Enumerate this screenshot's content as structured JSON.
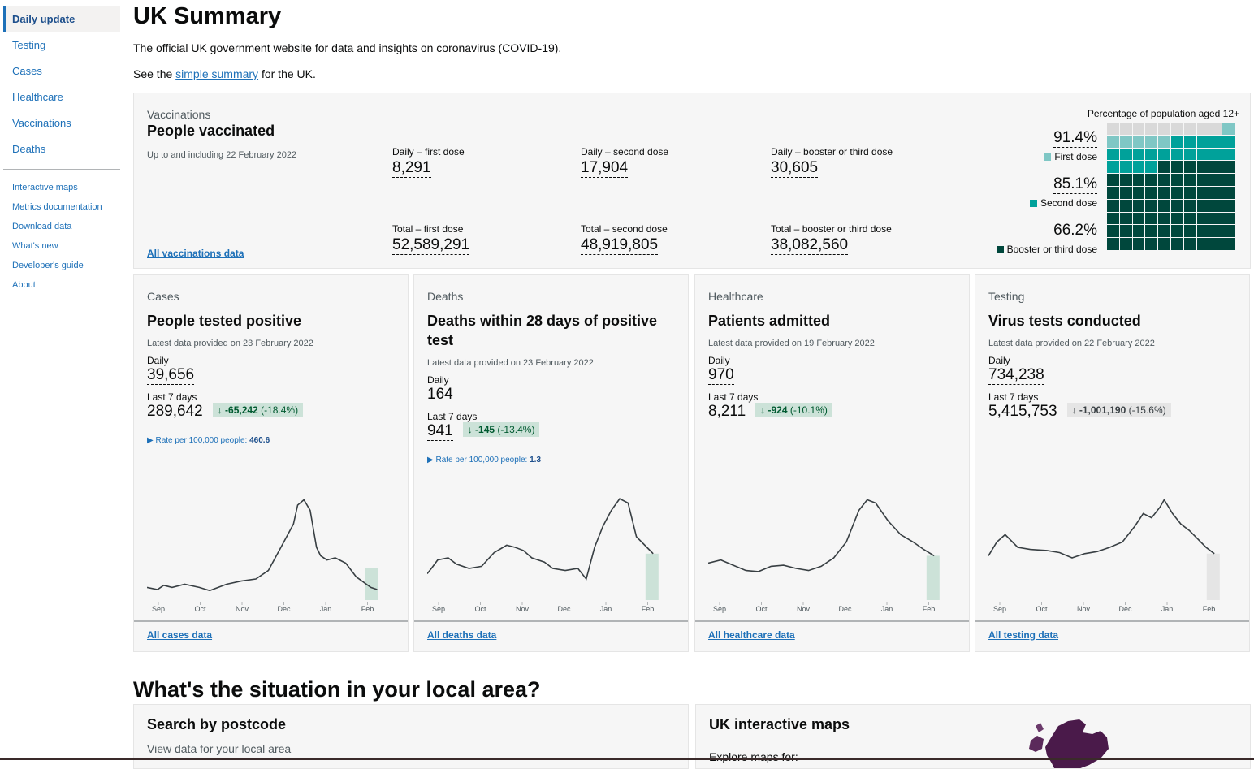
{
  "sidebar": {
    "items": [
      "Daily update",
      "Testing",
      "Cases",
      "Healthcare",
      "Vaccinations",
      "Deaths"
    ],
    "links": [
      "Interactive maps",
      "Metrics documentation",
      "Download data",
      "What's new",
      "Developer's guide",
      "About"
    ]
  },
  "header": {
    "title": "UK Summary",
    "intro": "The official UK government website for data and insights on coronavirus (COVID-19).",
    "see_prefix": "See the",
    "see_link": "simple summary",
    "see_suffix": "for the UK."
  },
  "vaccinations": {
    "category": "Vaccinations",
    "heading": "People vaccinated",
    "upto": "Up to and including 22 February 2022",
    "all_link": "All vaccinations data",
    "metrics": [
      {
        "label": "Daily – first dose",
        "value": "8,291"
      },
      {
        "label": "Daily – second dose",
        "value": "17,904"
      },
      {
        "label": "Daily – booster or third dose",
        "value": "30,605"
      },
      {
        "label": "Total – first dose",
        "value": "52,589,291"
      },
      {
        "label": "Total – second dose",
        "value": "48,919,805"
      },
      {
        "label": "Total – booster or third dose",
        "value": "38,082,560"
      }
    ],
    "waffle": {
      "title": "Percentage of population aged 12+",
      "first_pct": "91.4%",
      "first_label": "First dose",
      "second_pct": "85.1%",
      "second_label": "Second dose",
      "booster_pct": "66.2%",
      "booster_label": "Booster or third dose",
      "first_value": 91.4,
      "second_value": 85.1,
      "booster_value": 66.2,
      "colors": {
        "first": "#7fc7c5",
        "second": "#00a19a",
        "booster": "#00473c",
        "empty": "#d9d9d9"
      }
    }
  },
  "cards": [
    {
      "category": "Cases",
      "heading": "People tested positive",
      "latest": "Latest data provided on 23 February 2022",
      "daily_label": "Daily",
      "daily": "39,656",
      "week_label": "Last 7 days",
      "week": "289,642",
      "change": "-65,242",
      "change_pct": "(-18.4%)",
      "change_color": "green",
      "rate_label": "Rate per 100,000 people:",
      "rate_value": "460.6",
      "all_link": "All cases data",
      "chart_months": [
        "Sep",
        "Oct",
        "Nov",
        "Dec",
        "Jan",
        "Feb"
      ],
      "highlight": "#cce2d8"
    },
    {
      "category": "Deaths",
      "heading": "Deaths within 28 days of positive test",
      "latest": "Latest data provided on 23 February 2022",
      "daily_label": "Daily",
      "daily": "164",
      "week_label": "Last 7 days",
      "week": "941",
      "change": "-145",
      "change_pct": "(-13.4%)",
      "change_color": "green",
      "rate_label": "Rate per 100,000 people:",
      "rate_value": "1.3",
      "all_link": "All deaths data",
      "chart_months": [
        "Sep",
        "Oct",
        "Nov",
        "Dec",
        "Jan",
        "Feb"
      ],
      "highlight": "#cce2d8"
    },
    {
      "category": "Healthcare",
      "heading": "Patients admitted",
      "latest": "Latest data provided on 19 February 2022",
      "daily_label": "Daily",
      "daily": "970",
      "week_label": "Last 7 days",
      "week": "8,211",
      "change": "-924",
      "change_pct": "(-10.1%)",
      "change_color": "green",
      "all_link": "All healthcare data",
      "chart_months": [
        "Sep",
        "Oct",
        "Nov",
        "Dec",
        "Jan",
        "Feb"
      ],
      "highlight": "#cce2d8"
    },
    {
      "category": "Testing",
      "heading": "Virus tests conducted",
      "latest": "Latest data provided on 22 February 2022",
      "daily_label": "Daily",
      "daily": "734,238",
      "week_label": "Last 7 days",
      "week": "5,415,753",
      "change": "-1,001,190",
      "change_pct": "(-15.6%)",
      "change_color": "grey",
      "all_link": "All testing data",
      "chart_months": [
        "Sep",
        "Oct",
        "Nov",
        "Dec",
        "Jan",
        "Feb"
      ],
      "highlight": "#e5e5e5"
    }
  ],
  "local": {
    "title": "What's the situation in your local area?",
    "postcode_heading": "Search by postcode",
    "postcode_sub": "View data for your local area",
    "maps_heading": "UK interactive maps",
    "maps_sub": "Explore maps for:"
  },
  "icons": {
    "arrow_down": "arrow-down-icon",
    "triangle": "triangle-right-icon",
    "map": "uk-map-icon"
  }
}
